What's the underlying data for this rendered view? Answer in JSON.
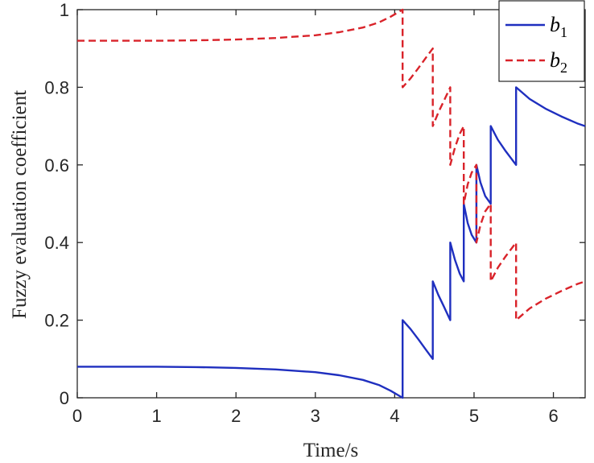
{
  "chart_data": {
    "type": "line",
    "xlabel": "Time/s",
    "ylabel": "Fuzzy evaluation coefficient",
    "xlim": [
      0,
      6.4
    ],
    "ylim": [
      0,
      1
    ],
    "xticks": [
      "0",
      "1",
      "2",
      "3",
      "4",
      "5",
      "6"
    ],
    "yticks": [
      "0",
      "0.2",
      "0.4",
      "0.6",
      "0.8",
      "1"
    ],
    "grid": false,
    "legend_position": "top-right",
    "series": [
      {
        "name": "b",
        "subscript": "1",
        "color": "#1f2fbf",
        "style": "solid",
        "x": [
          0,
          0.5,
          1.0,
          1.5,
          2.0,
          2.5,
          3.0,
          3.3,
          3.6,
          3.8,
          3.95,
          4.05,
          4.1,
          4.1,
          4.2,
          4.3,
          4.4,
          4.48,
          4.48,
          4.55,
          4.62,
          4.7,
          4.7,
          4.76,
          4.82,
          4.87,
          4.87,
          4.92,
          4.97,
          5.03,
          5.03,
          5.08,
          5.14,
          5.21,
          5.21,
          5.3,
          5.4,
          5.53,
          5.53,
          5.7,
          5.9,
          6.1,
          6.3,
          6.4
        ],
        "y": [
          0.08,
          0.08,
          0.08,
          0.079,
          0.077,
          0.073,
          0.066,
          0.058,
          0.046,
          0.033,
          0.018,
          0.006,
          0.0,
          0.2,
          0.177,
          0.15,
          0.122,
          0.1,
          0.3,
          0.265,
          0.235,
          0.2,
          0.4,
          0.355,
          0.32,
          0.3,
          0.5,
          0.45,
          0.42,
          0.4,
          0.6,
          0.555,
          0.52,
          0.5,
          0.7,
          0.665,
          0.635,
          0.6,
          0.8,
          0.77,
          0.745,
          0.725,
          0.707,
          0.7
        ]
      },
      {
        "name": "b",
        "subscript": "2",
        "color": "#d9232a",
        "style": "dashed",
        "x": [
          0,
          0.5,
          1.0,
          1.5,
          2.0,
          2.5,
          3.0,
          3.3,
          3.6,
          3.8,
          3.95,
          4.05,
          4.1,
          4.1,
          4.2,
          4.3,
          4.4,
          4.48,
          4.48,
          4.55,
          4.62,
          4.7,
          4.7,
          4.76,
          4.82,
          4.87,
          4.87,
          4.92,
          4.97,
          5.03,
          5.03,
          5.08,
          5.14,
          5.21,
          5.21,
          5.3,
          5.4,
          5.53,
          5.53,
          5.7,
          5.9,
          6.1,
          6.3,
          6.4
        ],
        "y": [
          0.92,
          0.92,
          0.92,
          0.921,
          0.923,
          0.927,
          0.934,
          0.942,
          0.954,
          0.967,
          0.982,
          0.994,
          1.0,
          0.8,
          0.823,
          0.85,
          0.878,
          0.9,
          0.7,
          0.735,
          0.765,
          0.8,
          0.6,
          0.645,
          0.68,
          0.7,
          0.5,
          0.55,
          0.58,
          0.6,
          0.4,
          0.445,
          0.48,
          0.5,
          0.3,
          0.335,
          0.365,
          0.4,
          0.2,
          0.23,
          0.255,
          0.275,
          0.293,
          0.3
        ]
      }
    ]
  }
}
